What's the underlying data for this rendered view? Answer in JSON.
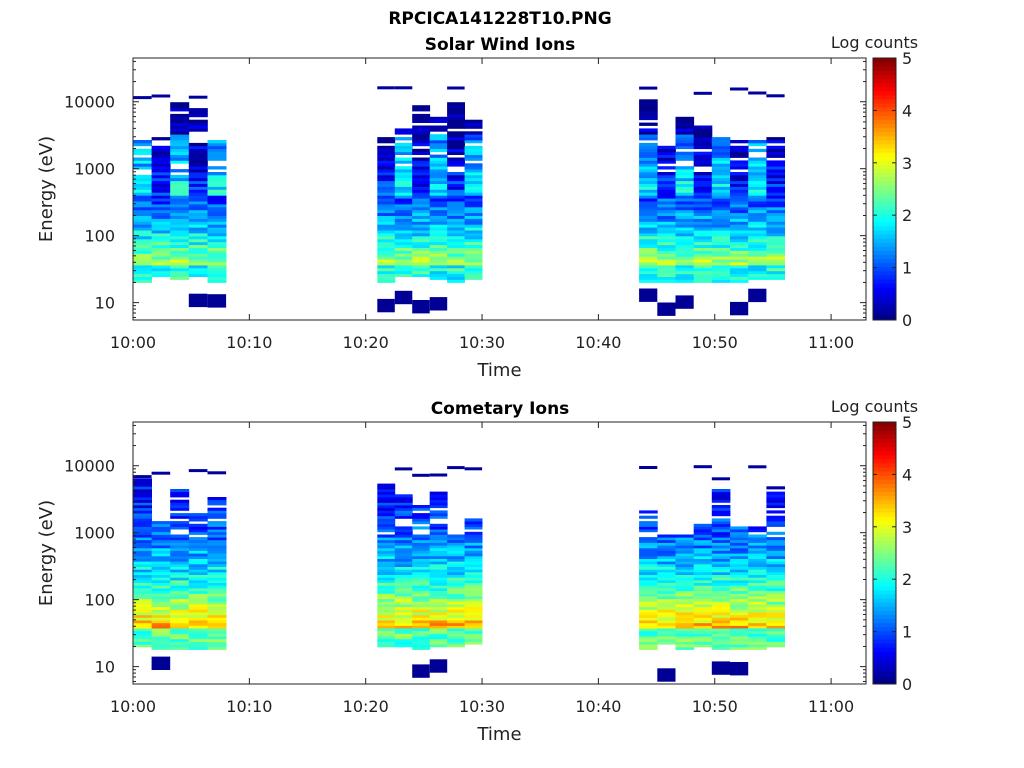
{
  "figure_title": "RPCICA141228T10.PNG",
  "chart_data": [
    {
      "type": "heatmap",
      "title": "Solar Wind Ions",
      "xlabel": "Time",
      "ylabel": "Energy (eV)",
      "x_ticks": [
        "10:00",
        "10:10",
        "10:20",
        "10:30",
        "10:40",
        "10:50",
        "11:00"
      ],
      "y_ticks": [
        "10",
        "100",
        "1000",
        "10000"
      ],
      "y_scale": "log",
      "ylim": [
        5.5,
        45000
      ],
      "xlim_minutes": [
        0,
        63
      ],
      "colorbar": {
        "label": "Log counts",
        "range": [
          0,
          5
        ],
        "ticks": [
          "0",
          "1",
          "2",
          "3",
          "4",
          "5"
        ],
        "colormap": "jet"
      },
      "time_blocks_minutes": [
        [
          0,
          8
        ],
        [
          21,
          30
        ],
        [
          43.5,
          56
        ]
      ],
      "energy_range_ev": [
        20,
        12000
      ],
      "peak_energy_ev": 33,
      "peak_log_counts": 3.2
    },
    {
      "type": "heatmap",
      "title": "Cometary Ions",
      "xlabel": "Time",
      "ylabel": "Energy (eV)",
      "x_ticks": [
        "10:00",
        "10:10",
        "10:20",
        "10:30",
        "10:40",
        "10:50",
        "11:00"
      ],
      "y_ticks": [
        "10",
        "100",
        "1000",
        "10000"
      ],
      "y_scale": "log",
      "ylim": [
        5.5,
        45000
      ],
      "xlim_minutes": [
        0,
        63
      ],
      "colorbar": {
        "label": "Log counts",
        "range": [
          0,
          5
        ],
        "ticks": [
          "0",
          "1",
          "2",
          "3",
          "4",
          "5"
        ],
        "colormap": "jet"
      },
      "time_blocks_minutes": [
        [
          0,
          8
        ],
        [
          21,
          30
        ],
        [
          43.5,
          56
        ]
      ],
      "energy_range_ev": [
        18,
        6500
      ],
      "peak_energy_ev": 35,
      "peak_log_counts": 3.8
    }
  ]
}
